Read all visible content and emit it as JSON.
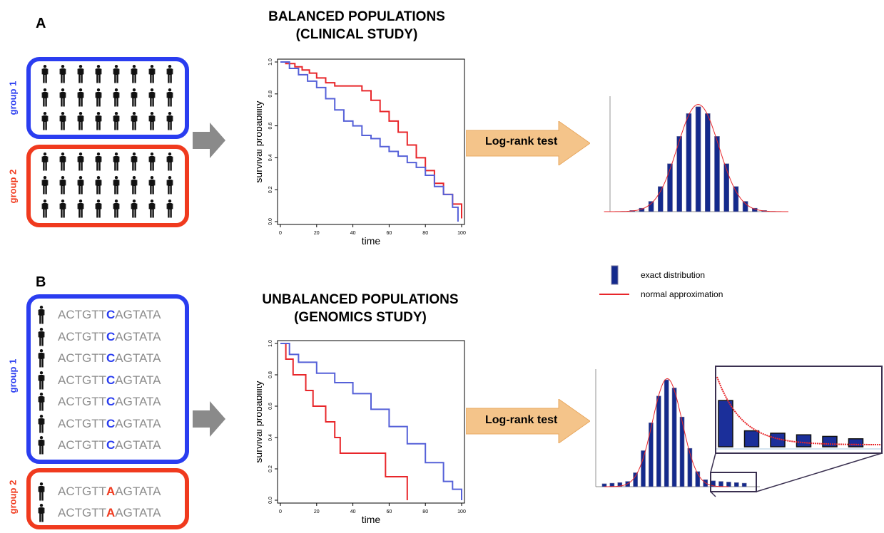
{
  "panels": {
    "a": {
      "letter": "A",
      "title_line1": "BALANCED POPULATIONS",
      "title_line2": "(CLINICAL STUDY)",
      "group1_label": "group 1",
      "group2_label": "group 2",
      "test_label": "Log-rank test"
    },
    "b": {
      "letter": "B",
      "title_line1": "UNBALANCED POPULATIONS",
      "title_line2": "(GENOMICS STUDY)",
      "group1_label": "group 1",
      "group2_label": "group 2",
      "test_label": "Log-rank test",
      "group1_sequences": [
        {
          "prefix": "ACTGTT",
          "base": "C",
          "suffix": "AGTATA"
        },
        {
          "prefix": "ACTGTT",
          "base": "C",
          "suffix": "AGTATA"
        },
        {
          "prefix": "ACTGTT",
          "base": "C",
          "suffix": "AGTATA"
        },
        {
          "prefix": "ACTGTT",
          "base": "C",
          "suffix": "AGTATA"
        },
        {
          "prefix": "ACTGTT",
          "base": "C",
          "suffix": "AGTATA"
        },
        {
          "prefix": "ACTGTT",
          "base": "C",
          "suffix": "AGTATA"
        },
        {
          "prefix": "ACTGTT",
          "base": "C",
          "suffix": "AGTATA"
        }
      ],
      "group2_sequences": [
        {
          "prefix": "ACTGTT",
          "base": "A",
          "suffix": "AGTATA"
        },
        {
          "prefix": "ACTGTT",
          "base": "A",
          "suffix": "AGTATA"
        }
      ]
    }
  },
  "legend": {
    "exact": "exact distribution",
    "normal": "normal approximation"
  },
  "colors": {
    "group1": "#2a3df0",
    "group2": "#f03a1e",
    "curve_blue": "#5560d8",
    "curve_red": "#e8262a",
    "bar": "#142a8c",
    "arrow_orange": "#f4c48a",
    "arrow_gray": "#8a8a8a"
  },
  "chart_data": [
    {
      "type": "line",
      "name": "survival-balanced",
      "xlabel": "time",
      "ylabel": "survival probability",
      "xlim": [
        0,
        100
      ],
      "ylim": [
        0,
        1
      ],
      "xticks": [
        "0",
        "20",
        "40",
        "60",
        "80",
        "100"
      ],
      "yticks": [
        "0.0",
        "0.2",
        "0.4",
        "0.6",
        "0.8",
        "1.0"
      ],
      "series": [
        {
          "color": "red",
          "x": [
            0,
            3,
            8,
            12,
            16,
            20,
            25,
            30,
            35,
            40,
            45,
            50,
            55,
            60,
            65,
            70,
            75,
            80,
            85,
            90,
            95,
            100
          ],
          "y": [
            1.0,
            0.99,
            0.97,
            0.95,
            0.93,
            0.9,
            0.87,
            0.85,
            0.85,
            0.85,
            0.82,
            0.76,
            0.69,
            0.63,
            0.56,
            0.48,
            0.4,
            0.32,
            0.24,
            0.17,
            0.11,
            0.02
          ]
        },
        {
          "color": "blue",
          "x": [
            0,
            5,
            10,
            15,
            20,
            25,
            30,
            35,
            40,
            45,
            50,
            55,
            60,
            65,
            70,
            75,
            80,
            85,
            90,
            95,
            98
          ],
          "y": [
            1.0,
            0.96,
            0.92,
            0.88,
            0.84,
            0.77,
            0.7,
            0.63,
            0.6,
            0.54,
            0.52,
            0.47,
            0.44,
            0.41,
            0.37,
            0.34,
            0.29,
            0.22,
            0.17,
            0.09,
            0.0
          ]
        }
      ]
    },
    {
      "type": "line",
      "name": "survival-unbalanced",
      "xlabel": "time",
      "ylabel": "survival probability",
      "xlim": [
        0,
        100
      ],
      "ylim": [
        0,
        1
      ],
      "xticks": [
        "0",
        "20",
        "40",
        "60",
        "80",
        "100"
      ],
      "yticks": [
        "0.0",
        "0.2",
        "0.4",
        "0.6",
        "0.8",
        "1.0"
      ],
      "series": [
        {
          "color": "red",
          "x": [
            0,
            3,
            3,
            7,
            7,
            14,
            14,
            18,
            18,
            25,
            25,
            30,
            30,
            33,
            33,
            58,
            58,
            70,
            70
          ],
          "y": [
            1.0,
            1.0,
            0.9,
            0.9,
            0.8,
            0.8,
            0.7,
            0.7,
            0.6,
            0.6,
            0.5,
            0.5,
            0.4,
            0.4,
            0.3,
            0.3,
            0.15,
            0.15,
            0.0
          ]
        },
        {
          "color": "blue",
          "x": [
            0,
            5,
            10,
            20,
            30,
            40,
            50,
            60,
            70,
            80,
            90,
            95,
            100
          ],
          "y": [
            1.0,
            0.93,
            0.88,
            0.81,
            0.75,
            0.68,
            0.58,
            0.47,
            0.36,
            0.24,
            0.12,
            0.07,
            0.0
          ]
        }
      ]
    },
    {
      "type": "bar",
      "name": "test-distribution-balanced",
      "values": [
        0.002,
        0.01,
        0.03,
        0.09,
        0.22,
        0.42,
        0.66,
        0.86,
        0.92,
        0.86,
        0.66,
        0.42,
        0.22,
        0.09,
        0.03,
        0.01,
        0.002
      ],
      "overlay": "normal approximation"
    },
    {
      "type": "bar",
      "name": "test-distribution-unbalanced",
      "values": [
        0.025,
        0.03,
        0.035,
        0.045,
        0.12,
        0.31,
        0.55,
        0.78,
        0.92,
        0.85,
        0.6,
        0.33,
        0.13,
        0.06,
        0.05,
        0.045,
        0.04,
        0.035,
        0.03
      ],
      "overlay": "normal approximation",
      "zoom_values": [
        0.58,
        0.2,
        0.17,
        0.15,
        0.13,
        0.1
      ]
    }
  ]
}
